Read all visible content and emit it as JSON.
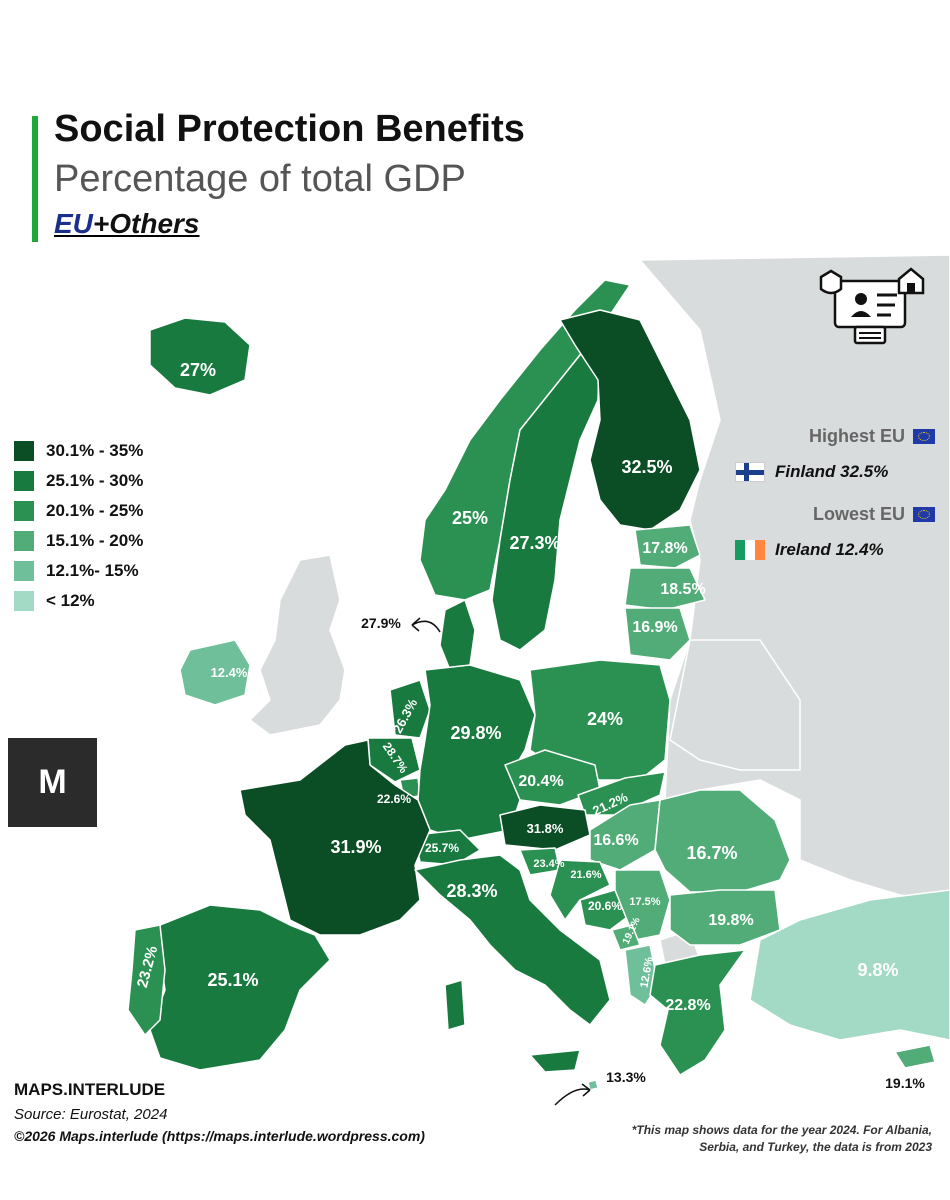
{
  "header": {
    "title": "Social Protection Benefits",
    "subtitle": "Percentage of total GDP",
    "scope_eu": "EU",
    "scope_rest": "+Others"
  },
  "colors": {
    "accent_bar": "#1ea83c",
    "eu_blue": "#1a2f8c",
    "non_data_land": "#d9dcdd",
    "sea": "#ffffff"
  },
  "legend": [
    {
      "label": "30.1% - 35%",
      "color": "#0b4d25"
    },
    {
      "label": "25.1% - 30%",
      "color": "#187a3f"
    },
    {
      "label": "20.1% - 25%",
      "color": "#2b9152"
    },
    {
      "label": "15.1% - 20%",
      "color": "#51ac78"
    },
    {
      "label": "12.1%- 15%",
      "color": "#6fc09a"
    },
    {
      "label": "< 12%",
      "color": "#a3dac6"
    }
  ],
  "highlights": {
    "highest_heading": "Highest EU",
    "highest_value": "Finland 32.5%",
    "lowest_heading": "Lowest EU",
    "lowest_value": "Ireland 12.4%"
  },
  "map": {
    "countries": [
      {
        "key": "iceland",
        "name": "Iceland",
        "value": 27.0,
        "label": "27%"
      },
      {
        "key": "norway",
        "name": "Norway",
        "value": 25.0,
        "label": "25%"
      },
      {
        "key": "sweden",
        "name": "Sweden",
        "value": 27.3,
        "label": "27.3%"
      },
      {
        "key": "finland",
        "name": "Finland",
        "value": 32.5,
        "label": "32.5%"
      },
      {
        "key": "estonia",
        "name": "Estonia",
        "value": 17.8,
        "label": "17.8%"
      },
      {
        "key": "latvia",
        "name": "Latvia",
        "value": 18.5,
        "label": "18.5%"
      },
      {
        "key": "lithuania",
        "name": "Lithuania",
        "value": 16.9,
        "label": "16.9%"
      },
      {
        "key": "denmark",
        "name": "Denmark",
        "value": 27.9,
        "label": "27.9%"
      },
      {
        "key": "ireland",
        "name": "Ireland",
        "value": 12.4,
        "label": "12.4%"
      },
      {
        "key": "netherlands",
        "name": "Netherlands",
        "value": 26.3,
        "label": "26.3%"
      },
      {
        "key": "belgium",
        "name": "Belgium",
        "value": 28.7,
        "label": "28.7%"
      },
      {
        "key": "luxembourg",
        "name": "Luxembourg",
        "value": 22.6,
        "label": "22.6%"
      },
      {
        "key": "germany",
        "name": "Germany",
        "value": 29.8,
        "label": "29.8%"
      },
      {
        "key": "poland",
        "name": "Poland",
        "value": 24.0,
        "label": "24%"
      },
      {
        "key": "czechia",
        "name": "Czechia",
        "value": 20.4,
        "label": "20.4%"
      },
      {
        "key": "slovakia",
        "name": "Slovakia",
        "value": 21.2,
        "label": "21.2%"
      },
      {
        "key": "austria",
        "name": "Austria",
        "value": 31.8,
        "label": "31.8%"
      },
      {
        "key": "switzerland",
        "name": "Switzerland",
        "value": 25.7,
        "label": "25.7%"
      },
      {
        "key": "france",
        "name": "France",
        "value": 31.9,
        "label": "31.9%"
      },
      {
        "key": "hungary",
        "name": "Hungary",
        "value": 16.6,
        "label": "16.6%"
      },
      {
        "key": "romania",
        "name": "Romania",
        "value": 16.7,
        "label": "16.7%"
      },
      {
        "key": "slovenia",
        "name": "Slovenia",
        "value": 23.4,
        "label": "23.4%"
      },
      {
        "key": "croatia",
        "name": "Croatia",
        "value": 21.6,
        "label": "21.6%"
      },
      {
        "key": "bosnia",
        "name": "Bosnia and Herzegovina",
        "value": 20.6,
        "label": "20.6%"
      },
      {
        "key": "serbia",
        "name": "Serbia",
        "value": 17.5,
        "label": "17.5%"
      },
      {
        "key": "montenegro",
        "name": "Montenegro",
        "value": 19.1,
        "label": "19.1%"
      },
      {
        "key": "albania",
        "name": "Albania",
        "value": 12.6,
        "label": "12.6%"
      },
      {
        "key": "bulgaria",
        "name": "Bulgaria",
        "value": 19.8,
        "label": "19.8%"
      },
      {
        "key": "greece",
        "name": "Greece",
        "value": 22.8,
        "label": "22.8%"
      },
      {
        "key": "turkey",
        "name": "Turkey",
        "value": 9.8,
        "label": "9.8%"
      },
      {
        "key": "cyprus",
        "name": "Cyprus",
        "value": 19.1,
        "label": "19.1%"
      },
      {
        "key": "italy",
        "name": "Italy",
        "value": 28.3,
        "label": "28.3%"
      },
      {
        "key": "malta",
        "name": "Malta",
        "value": 13.3,
        "label": "13.3%"
      },
      {
        "key": "spain",
        "name": "Spain",
        "value": 25.1,
        "label": "25.1%"
      },
      {
        "key": "portugal",
        "name": "Portugal",
        "value": 23.2,
        "label": "23.2%"
      }
    ]
  },
  "branding": {
    "logo_text": "M",
    "name": "MAPS.INTERLUDE",
    "source": "Source: Eurostat, 2024",
    "copyright": "©2026 Maps.interlude (https://maps.interlude.wordpress.com)"
  },
  "footnote": "*This map shows data for the year 2024. For Albania, Serbia, and Turkey, the data is from 2023"
}
